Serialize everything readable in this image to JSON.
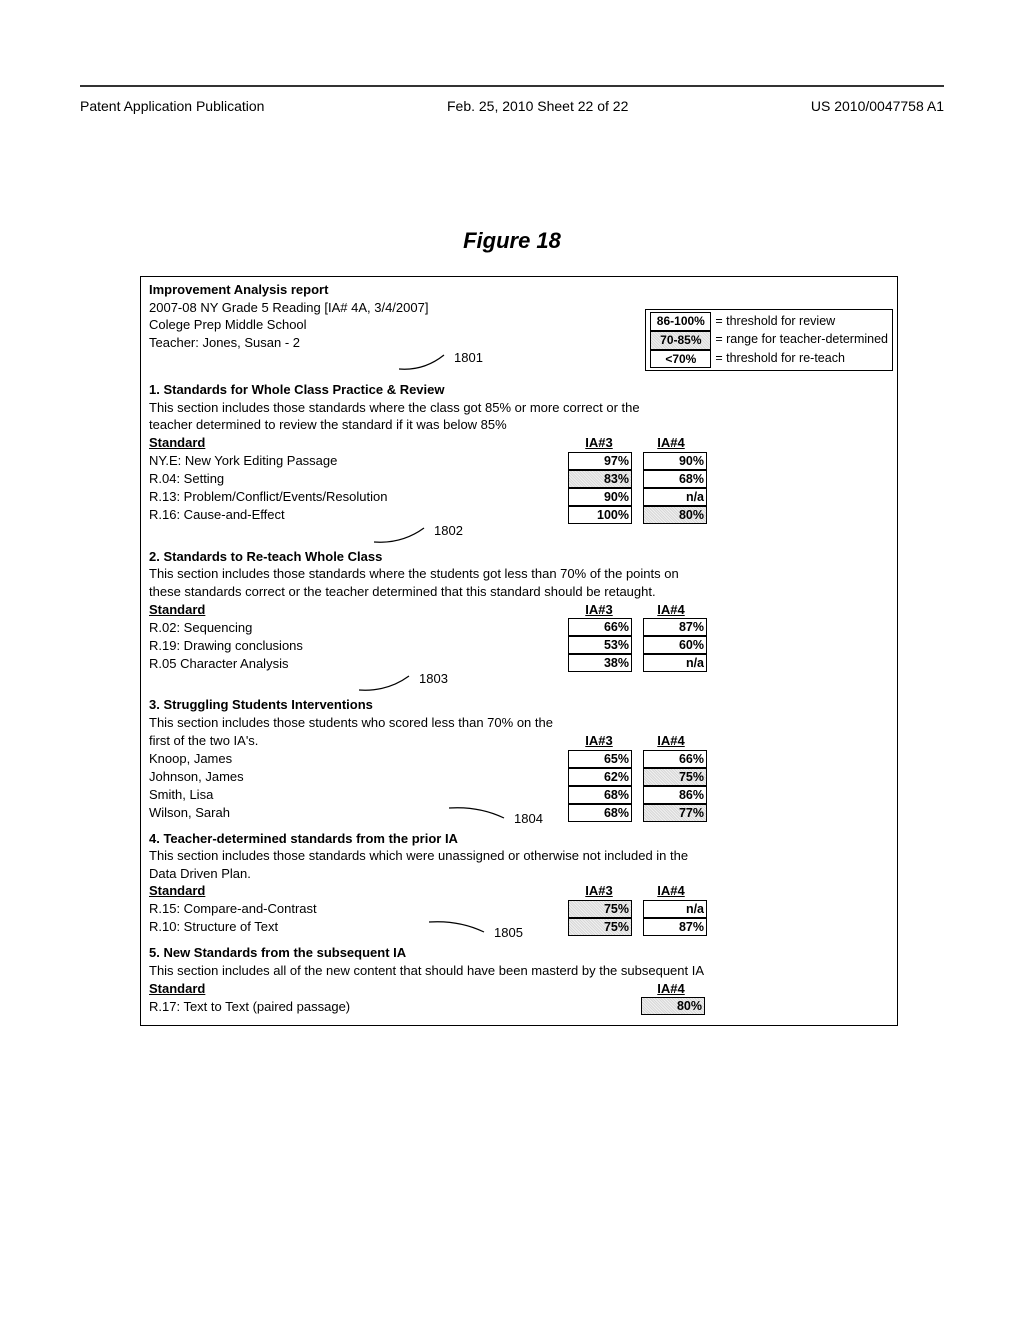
{
  "header": {
    "left": "Patent Application Publication",
    "center": "Feb. 25, 2010  Sheet 22 of 22",
    "right": "US 2010/0047758 A1"
  },
  "figure_title": "Figure 18",
  "report": {
    "title": "Improvement Analysis report",
    "subtitle": "2007-08 NY Grade 5 Reading [IA# 4A, 3/4/2007]",
    "school": "Colege Prep Middle School",
    "teacher": "Teacher: Jones, Susan - 2"
  },
  "legend": {
    "rows": [
      {
        "swatch": "86-100%",
        "shaded": false,
        "text": "= threshold for review"
      },
      {
        "swatch": "70-85%",
        "shaded": true,
        "text": "= range for teacher-determined"
      },
      {
        "swatch": "<70%",
        "shaded": false,
        "text": "= threshold for re-teach"
      }
    ]
  },
  "callouts": {
    "c1": "1801",
    "c2": "1802",
    "c3": "1803",
    "c4": "1804",
    "c5": "1805"
  },
  "section1": {
    "title": "1. Standards for Whole Class Practice & Review",
    "desc1": "This section includes those standards where the class got 85% or more correct or the",
    "desc2": "teacher determined to review the standard if it was below 85%",
    "col_label": "Standard",
    "col1": "IA#3",
    "col2": "IA#4",
    "rows": [
      {
        "label": "NY.E: New York Editing Passage",
        "v1": "97%",
        "s1": false,
        "v2": "90%",
        "s2": false
      },
      {
        "label": "R.04: Setting",
        "v1": "83%",
        "s1": true,
        "v2": "68%",
        "s2": false
      },
      {
        "label": "R.13: Problem/Conflict/Events/Resolution",
        "v1": "90%",
        "s1": false,
        "v2": "n/a",
        "s2": false
      },
      {
        "label": "R.16: Cause-and-Effect",
        "v1": "100%",
        "s1": false,
        "v2": "80%",
        "s2": true
      }
    ]
  },
  "section2": {
    "title": "2. Standards to Re-teach Whole Class",
    "desc1": "This section includes those standards where the students got less than 70% of the points on",
    "desc2": "these standards correct or the teacher determined that this standard should be retaught.",
    "col_label": "Standard",
    "col1": "IA#3",
    "col2": "IA#4",
    "rows": [
      {
        "label": "R.02: Sequencing",
        "v1": "66%",
        "s1": false,
        "v2": "87%",
        "s2": false
      },
      {
        "label": "R.19: Drawing conclusions",
        "v1": "53%",
        "s1": false,
        "v2": "60%",
        "s2": false
      },
      {
        "label": "R.05 Character Analysis",
        "v1": "38%",
        "s1": false,
        "v2": "n/a",
        "s2": false
      }
    ]
  },
  "section3": {
    "title": "3. Struggling Students Interventions",
    "desc1": "This section includes those students who scored less than 70% on the",
    "desc2": "first of the two IA's.",
    "col1": "IA#3",
    "col2": "IA#4",
    "rows": [
      {
        "label": "Knoop, James",
        "v1": "65%",
        "s1": false,
        "v2": "66%",
        "s2": false
      },
      {
        "label": "Johnson, James",
        "v1": "62%",
        "s1": false,
        "v2": "75%",
        "s2": true
      },
      {
        "label": "Smith, Lisa",
        "v1": "68%",
        "s1": false,
        "v2": "86%",
        "s2": false
      },
      {
        "label": "Wilson, Sarah",
        "v1": "68%",
        "s1": false,
        "v2": "77%",
        "s2": true
      }
    ]
  },
  "section4": {
    "title": "4. Teacher-determined standards from the prior IA",
    "desc1": "This section includes those standards which were unassigned or otherwise not included in the",
    "desc2": "Data Driven Plan.",
    "col_label": "Standard",
    "col1": "IA#3",
    "col2": "IA#4",
    "rows": [
      {
        "label": "R.15: Compare-and-Contrast",
        "v1": "75%",
        "s1": true,
        "v2": "n/a",
        "s2": false
      },
      {
        "label": "R.10: Structure of Text",
        "v1": "75%",
        "s1": true,
        "v2": "87%",
        "s2": false
      }
    ]
  },
  "section5": {
    "title": "5. New Standards from the subsequent IA",
    "desc1": "This section includes all of the new content that should have been masterd by the subsequent IA",
    "col_label": "Standard",
    "col2": "IA#4",
    "rows": [
      {
        "label": "R.17: Text to Text (paired passage)",
        "v2": "80%",
        "s2": true
      }
    ]
  }
}
